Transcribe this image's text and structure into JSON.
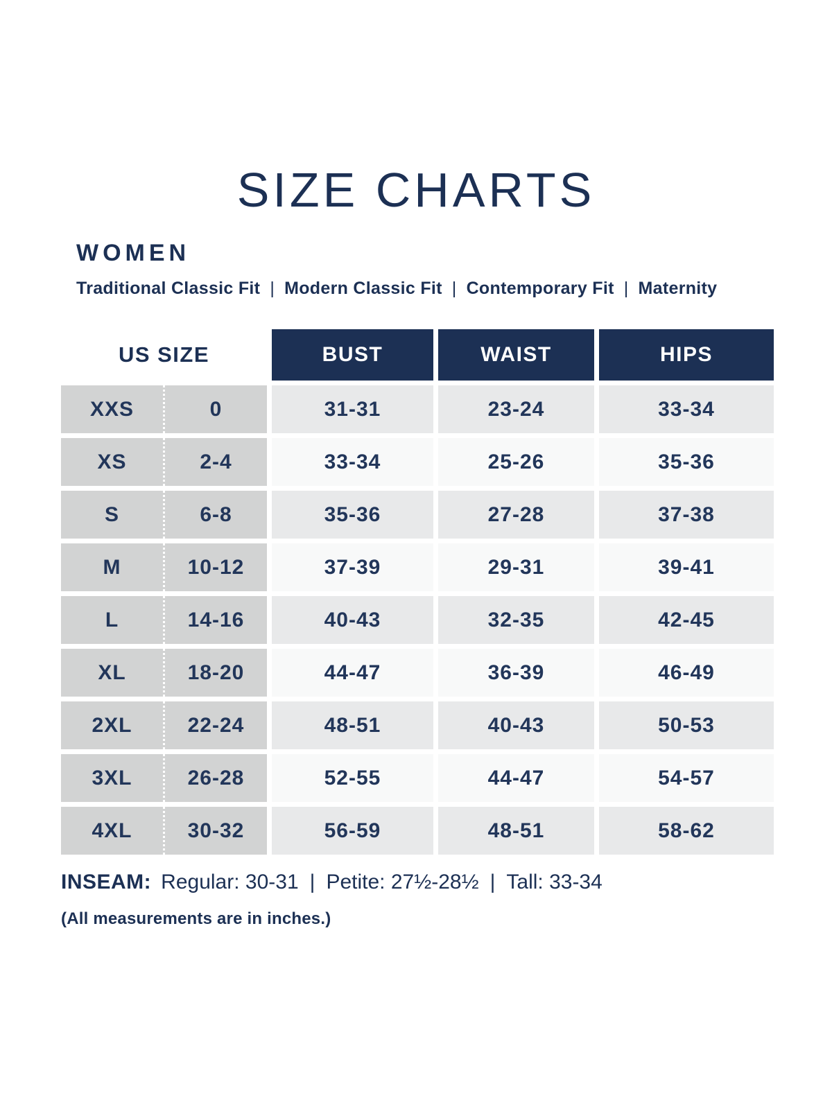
{
  "page": {
    "title": "SIZE CHARTS"
  },
  "section": {
    "heading": "WOMEN"
  },
  "fits": {
    "divider": "|",
    "items": [
      "Traditional Classic Fit",
      "Modern Classic Fit",
      "Contemporary Fit",
      "Maternity"
    ]
  },
  "table": {
    "headers": {
      "us_size": "US SIZE",
      "bust": "BUST",
      "waist": "WAIST",
      "hips": "HIPS"
    },
    "rows": [
      {
        "size": "XXS",
        "us": "0",
        "bust": "31-31",
        "waist": "23-24",
        "hips": "33-34"
      },
      {
        "size": "XS",
        "us": "2-4",
        "bust": "33-34",
        "waist": "25-26",
        "hips": "35-36"
      },
      {
        "size": "S",
        "us": "6-8",
        "bust": "35-36",
        "waist": "27-28",
        "hips": "37-38"
      },
      {
        "size": "M",
        "us": "10-12",
        "bust": "37-39",
        "waist": "29-31",
        "hips": "39-41"
      },
      {
        "size": "L",
        "us": "14-16",
        "bust": "40-43",
        "waist": "32-35",
        "hips": "42-45"
      },
      {
        "size": "XL",
        "us": "18-20",
        "bust": "44-47",
        "waist": "36-39",
        "hips": "46-49"
      },
      {
        "size": "2XL",
        "us": "22-24",
        "bust": "48-51",
        "waist": "40-43",
        "hips": "50-53"
      },
      {
        "size": "3XL",
        "us": "26-28",
        "bust": "52-55",
        "waist": "44-47",
        "hips": "54-57"
      },
      {
        "size": "4XL",
        "us": "30-32",
        "bust": "56-59",
        "waist": "48-51",
        "hips": "58-62"
      }
    ]
  },
  "inseam": {
    "label": "INSEAM:",
    "regular": "Regular: 30-31",
    "petite": "Petite: 27½-28½",
    "tall": "Tall: 33-34",
    "divider": "|"
  },
  "note": "(All measurements are in inches.)",
  "colors": {
    "navy": "#1c3054",
    "header_text": "#ffffff",
    "us_column_gray": "#d2d3d3",
    "stripe_gray": "#e8e9ea",
    "stripe_white": "#f8f9f9",
    "body_text": "#22365a"
  }
}
